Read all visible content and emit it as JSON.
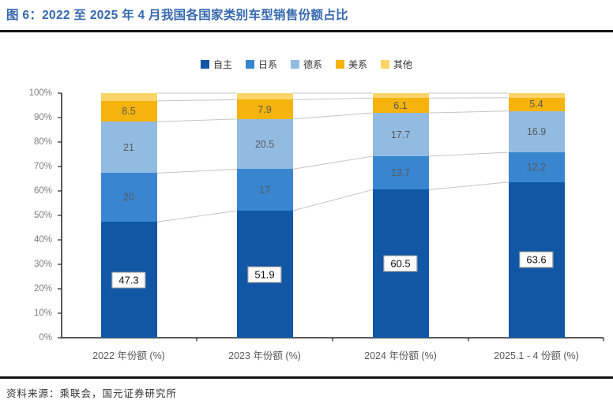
{
  "title": "图 6：2022 至 2025 年 4 月我国各国家类别车型销售份额占比",
  "source": "资料来源：乘联会，国元证券研究所",
  "chart_data": {
    "type": "bar",
    "variant": "stacked-percent-column",
    "categories": [
      "2022 年份额 (%)",
      "2023 年份额 (%)",
      "2024 年份额 (%)",
      "2025.1 - 4 份额 (%)"
    ],
    "series": [
      {
        "name": "自主",
        "color": "#1157a6",
        "values": [
          47.3,
          51.9,
          60.5,
          63.6
        ],
        "labels": [
          "47.3",
          "51.9",
          "60.5",
          "63.6"
        ],
        "label_style": "boxed"
      },
      {
        "name": "日系",
        "color": "#3985d0",
        "values": [
          20,
          17,
          13.7,
          12.2
        ],
        "labels": [
          "20",
          "17",
          "13.7",
          "12.2"
        ],
        "label_style": "plain"
      },
      {
        "name": "德系",
        "color": "#92bbe2",
        "values": [
          21,
          20.5,
          17.7,
          16.9
        ],
        "labels": [
          "21",
          "20.5",
          "17.7",
          "16.9"
        ],
        "label_style": "plain"
      },
      {
        "name": "美系",
        "color": "#f5b30b",
        "values": [
          8.5,
          7.9,
          6.1,
          5.4
        ],
        "labels": [
          "8.5",
          "7.9",
          "6.1",
          "5.4"
        ],
        "label_style": "plain"
      },
      {
        "name": "其他",
        "color": "#fcd568",
        "values": [
          3.2,
          2.7,
          2.0,
          1.9
        ],
        "labels": [
          "",
          "",
          "",
          ""
        ],
        "label_style": "none"
      }
    ],
    "y_ticks": [
      "0%",
      "10%",
      "20%",
      "30%",
      "40%",
      "50%",
      "60%",
      "70%",
      "80%",
      "90%",
      "100%"
    ],
    "ylim": [
      0,
      100
    ],
    "legend_position": "top",
    "series_lines": true,
    "axis_color": "#262626",
    "series_line_color": "#c4c4c4",
    "tick_label_color": "#7f7f7f"
  }
}
